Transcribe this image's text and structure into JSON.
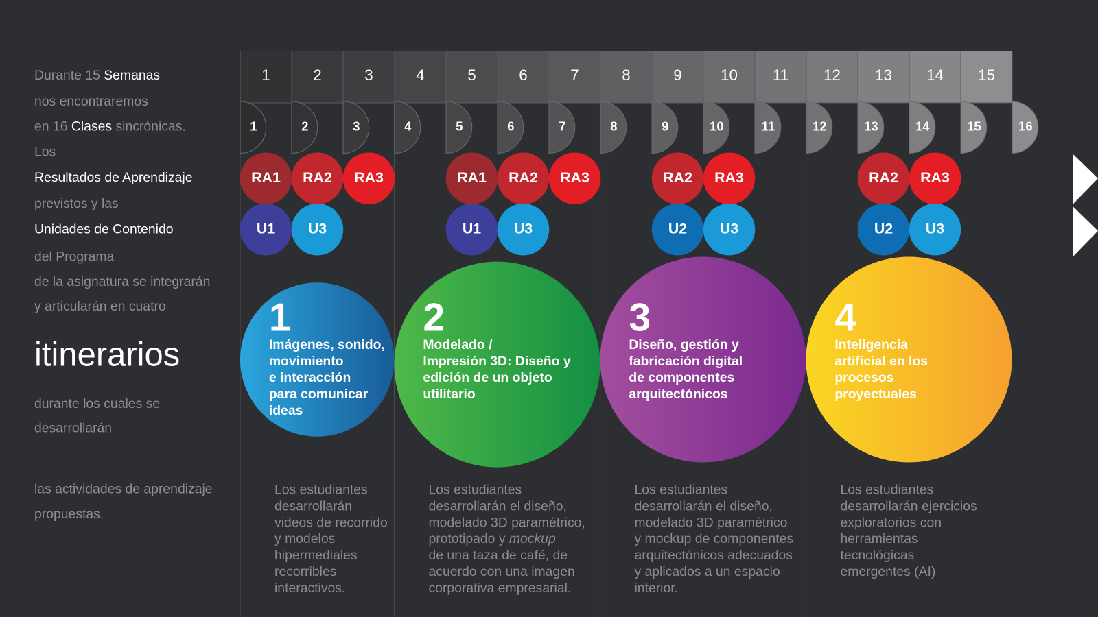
{
  "intro": [
    [
      {
        "text": "Durante 15 ",
        "style": "dim"
      },
      {
        "text": "Semanas",
        "style": "bright"
      }
    ],
    [
      {
        "text": "nos encontraremos",
        "style": "dim"
      }
    ],
    [
      {
        "text": "en 16 ",
        "style": "dim"
      },
      {
        "text": "Clases",
        "style": "bright"
      },
      {
        "text": " sincrónicas.",
        "style": "dim"
      }
    ],
    [
      {
        "text": "Los",
        "style": "dim"
      }
    ],
    [
      {
        "text": "Resultados de Aprendizaje",
        "style": "bright"
      }
    ],
    [
      {
        "text": "previstos y las",
        "style": "dim"
      }
    ],
    [
      {
        "text": "Unidades de Contenido",
        "style": "bright"
      }
    ],
    [
      {
        "text": "del Programa",
        "style": "dim"
      }
    ],
    [
      {
        "text": "de la asignatura se integrarán",
        "style": "dim"
      }
    ],
    [
      {
        "text": "y articularán en cuatro",
        "style": "dim"
      }
    ],
    [
      {
        "text": "itinerarios",
        "style": "big"
      }
    ],
    [
      {
        "text": "durante los cuales se",
        "style": "dim"
      }
    ],
    [
      {
        "text": "desarrollarán",
        "style": "dim"
      }
    ],
    [
      {
        "text": "las actividades de aprendizaje",
        "style": "dim"
      }
    ],
    [
      {
        "text": "propuestas.",
        "style": "dim"
      }
    ]
  ],
  "weeks": [
    "1",
    "2",
    "3",
    "4",
    "5",
    "6",
    "7",
    "8",
    "9",
    "10",
    "11",
    "12",
    "13",
    "14",
    "15"
  ],
  "classes": [
    "1",
    "2",
    "3",
    "4",
    "5",
    "6",
    "7",
    "8",
    "9",
    "10",
    "11",
    "12",
    "13",
    "14",
    "15",
    "16"
  ],
  "itineraries": [
    {
      "number": "1",
      "title": [
        "Imágenes, sonido,",
        "movimiento",
        "e interacción",
        "para comunicar",
        "ideas"
      ],
      "results": [
        "RA1",
        "RA2",
        "RA3"
      ],
      "units": [
        "U1",
        "U3"
      ],
      "description": [
        [
          "Los estudiantes"
        ],
        [
          "desarrollarán"
        ],
        [
          "videos de recorrido"
        ],
        [
          "y modelos"
        ],
        [
          "hipermediales"
        ],
        [
          "recorribles"
        ],
        [
          "interactivos."
        ]
      ]
    },
    {
      "number": "2",
      "title": [
        "Modelado /",
        "Impresión 3D: Diseño y",
        "edición de un objeto",
        "utilitario"
      ],
      "results": [
        "RA1",
        "RA2",
        "RA3"
      ],
      "units": [
        "U1",
        "U3"
      ],
      "description": [
        [
          "Los estudiantes"
        ],
        [
          "desarrollarán el diseño,"
        ],
        [
          "modelado 3D paramétrico,"
        ],
        [
          "prototipado y ",
          "mockup"
        ],
        [
          "de una taza de café, de"
        ],
        [
          "acuerdo con una imagen"
        ],
        [
          "corporativa empresarial."
        ]
      ]
    },
    {
      "number": "3",
      "title": [
        "Diseño, gestión y",
        "fabricación digital",
        "de componentes",
        "arquitectónicos"
      ],
      "results": [
        "RA2",
        "RA3"
      ],
      "units": [
        "U2",
        "U3"
      ],
      "description": [
        [
          "Los estudiantes"
        ],
        [
          "desarrollarán el diseño,"
        ],
        [
          "modelado 3D paramétrico"
        ],
        [
          "y mockup de componentes"
        ],
        [
          "arquitectónicos adecuados"
        ],
        [
          "y aplicados a un espacio"
        ],
        [
          "interior."
        ]
      ]
    },
    {
      "number": "4",
      "title": [
        "Inteligencia",
        "artificial en los",
        "procesos",
        "proyectuales"
      ],
      "results": [
        "RA2",
        "RA3"
      ],
      "units": [
        "U2",
        "U3"
      ],
      "description": [
        [
          "Los estudiantes"
        ],
        [
          "desarrollarán ejercicios"
        ],
        [
          "exploratorios con"
        ],
        [
          "herramientas"
        ],
        [
          "tecnológicas"
        ],
        [
          "emergentes (AI)"
        ]
      ]
    }
  ]
}
